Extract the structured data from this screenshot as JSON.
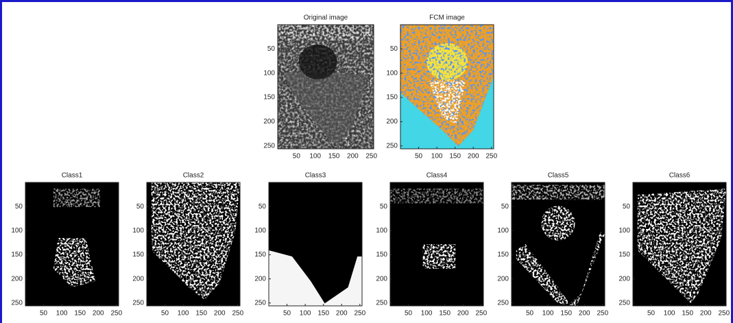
{
  "panels": [
    {
      "title": "Original image",
      "xticks": [
        50,
        100,
        150,
        200,
        250
      ],
      "yticks": [
        50,
        100,
        150,
        200,
        250
      ]
    },
    {
      "title": "FCM image",
      "xticks": [
        50,
        100,
        150,
        200,
        250
      ],
      "yticks": [
        50,
        100,
        150,
        200,
        250
      ]
    },
    {
      "title": "Class1",
      "xticks": [
        50,
        100,
        150,
        200,
        250
      ],
      "yticks": [
        50,
        100,
        150,
        200,
        250
      ]
    },
    {
      "title": "Class2",
      "xticks": [
        50,
        100,
        150,
        200,
        250
      ],
      "yticks": [
        50,
        100,
        150,
        200,
        250
      ]
    },
    {
      "title": "Class3",
      "xticks": [
        50,
        100,
        150,
        200,
        250
      ],
      "yticks": [
        50,
        100,
        150,
        200,
        250
      ]
    },
    {
      "title": "Class4",
      "xticks": [
        50,
        100,
        150,
        200,
        250
      ],
      "yticks": [
        50,
        100,
        150,
        200,
        250
      ]
    },
    {
      "title": "Class5",
      "xticks": [
        50,
        100,
        150,
        200,
        250
      ],
      "yticks": [
        50,
        100,
        150,
        200,
        250
      ]
    },
    {
      "title": "Class6",
      "xticks": [
        50,
        100,
        150,
        200,
        250
      ],
      "yticks": [
        50,
        100,
        150,
        200,
        250
      ]
    }
  ]
}
